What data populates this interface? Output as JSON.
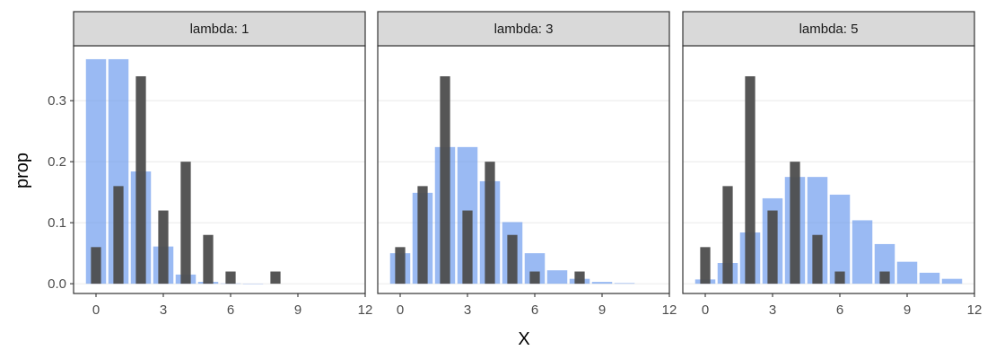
{
  "chart_data": {
    "type": "bar",
    "facet_label_prefix": "lambda: ",
    "xlabel": "X",
    "ylabel": "prop",
    "xlim": [
      -1,
      12
    ],
    "ylim": [
      -0.016,
      0.39
    ],
    "x_ticks": [
      0,
      3,
      6,
      9,
      12
    ],
    "y_ticks": [
      0.0,
      0.1,
      0.2,
      0.3
    ],
    "y_tick_labels": [
      "0.0",
      "0.1",
      "0.2",
      "0.3"
    ],
    "grid": true,
    "colors": {
      "observed": "#4d4d4d",
      "poisson": "#6495ed",
      "strip_fill": "#d9d9d9",
      "panel_border": "#333333",
      "grid": "#ebebeb"
    },
    "observed": {
      "x": [
        0,
        1,
        2,
        3,
        4,
        5,
        6,
        8
      ],
      "values": [
        0.06,
        0.16,
        0.34,
        0.12,
        0.2,
        0.08,
        0.02,
        0.02
      ]
    },
    "panels": [
      {
        "lambda": "1",
        "poisson_x": [
          0,
          1,
          2,
          3,
          4,
          5,
          6,
          7
        ],
        "poisson_values": [
          0.368,
          0.368,
          0.184,
          0.061,
          0.015,
          0.003,
          0.0005,
          0.0001
        ]
      },
      {
        "lambda": "3",
        "poisson_x": [
          0,
          1,
          2,
          3,
          4,
          5,
          6,
          7,
          8,
          9,
          10
        ],
        "poisson_values": [
          0.05,
          0.149,
          0.224,
          0.224,
          0.168,
          0.101,
          0.05,
          0.022,
          0.008,
          0.003,
          0.001
        ]
      },
      {
        "lambda": "5",
        "poisson_x": [
          0,
          1,
          2,
          3,
          4,
          5,
          6,
          7,
          8,
          9,
          10,
          11
        ],
        "poisson_values": [
          0.007,
          0.034,
          0.084,
          0.14,
          0.175,
          0.175,
          0.146,
          0.104,
          0.065,
          0.036,
          0.018,
          0.008
        ]
      }
    ]
  }
}
